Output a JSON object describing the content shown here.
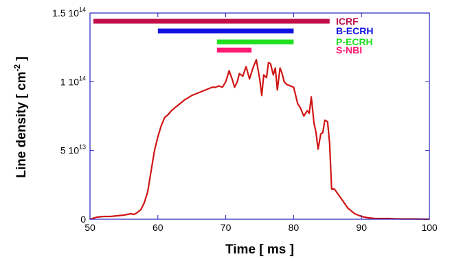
{
  "chart_data": {
    "type": "line",
    "title": "",
    "xlabel": "Time [ ms ]",
    "ylabel_main": "Line density [ cm",
    "ylabel_exp": "-2",
    "ylabel_end": " ]",
    "xlim": [
      50,
      100
    ],
    "ylim": [
      0,
      150000000000000.0
    ],
    "grid": false,
    "x_ticks": [
      {
        "value": 50,
        "label": "50"
      },
      {
        "value": 60,
        "label": "60"
      },
      {
        "value": 70,
        "label": "70"
      },
      {
        "value": 80,
        "label": "80"
      },
      {
        "value": 90,
        "label": "90"
      },
      {
        "value": 100,
        "label": "100"
      }
    ],
    "y_ticks": [
      {
        "value": 0,
        "mant": "0",
        "exp": ""
      },
      {
        "value": 50000000000000.0,
        "mant": "5 10",
        "exp": "13"
      },
      {
        "value": 100000000000000.0,
        "mant": "1 10",
        "exp": "14"
      },
      {
        "value": 150000000000000.0,
        "mant": "1.5 10",
        "exp": "14"
      }
    ],
    "heating_periods": [
      {
        "name": "ICRF",
        "start": 50.5,
        "end": 85.3,
        "level": 144000000000000.0,
        "color": "#c0104a"
      },
      {
        "name": "B-ECRH",
        "start": 60,
        "end": 80,
        "level": 137000000000000.0,
        "color": "#1010e0"
      },
      {
        "name": "P-ECRH",
        "start": 68.7,
        "end": 80,
        "level": 129000000000000.0,
        "color": "#20e020"
      },
      {
        "name": "S-NBI",
        "start": 68.7,
        "end": 73.8,
        "level": 123000000000000.0,
        "color": "#ff1a75"
      }
    ],
    "series": [
      {
        "color": "#d01515",
        "x": [
          50,
          51,
          52,
          53,
          54,
          55,
          56,
          56.5,
          57,
          57.5,
          58,
          58.5,
          59,
          59.5,
          60,
          60.5,
          61,
          61.5,
          62,
          63,
          64,
          65,
          66,
          67,
          67.5,
          68,
          68.5,
          69,
          69.5,
          70,
          70.5,
          71,
          71.3,
          71.7,
          72,
          72.5,
          73,
          73.5,
          74,
          74.5,
          75,
          75.3,
          75.6,
          76,
          76.3,
          76.6,
          77,
          77.3,
          77.6,
          78,
          78.3,
          78.6,
          79,
          80,
          80.3,
          80.6,
          81,
          81.5,
          82,
          82.3,
          82.6,
          83,
          83.3,
          83.6,
          84,
          84.3,
          84.6,
          85,
          85.3,
          85.6,
          86,
          87,
          88,
          89,
          90,
          91,
          92,
          93,
          94,
          95,
          96,
          97,
          98,
          99,
          100
        ],
        "y": [
          0,
          1500000000000.0,
          2000000000000.0,
          2000000000000.0,
          2500000000000.0,
          3000000000000.0,
          4000000000000.0,
          3500000000000.0,
          5000000000000.0,
          7000000000000.0,
          12000000000000.0,
          20000000000000.0,
          35000000000000.0,
          50000000000000.0,
          60000000000000.0,
          68000000000000.0,
          74000000000000.0,
          76000000000000.0,
          79000000000000.0,
          83000000000000.0,
          87000000000000.0,
          90000000000000.0,
          92000000000000.0,
          94000000000000.0,
          95000000000000.0,
          96000000000000.0,
          96000000000000.0,
          97000000000000.0,
          96000000000000.0,
          100000000000000.0,
          108000000000000.0,
          101000000000000.0,
          96000000000000.0,
          100000000000000.0,
          106000000000000.0,
          104000000000000.0,
          111000000000000.0,
          102000000000000.0,
          110000000000000.0,
          116000000000000.0,
          102000000000000.0,
          90000000000000.0,
          105000000000000.0,
          103000000000000.0,
          114000000000000.0,
          113000000000000.0,
          105000000000000.0,
          110000000000000.0,
          94000000000000.0,
          110000000000000.0,
          106000000000000.0,
          100000000000000.0,
          98000000000000.0,
          96000000000000.0,
          90000000000000.0,
          84000000000000.0,
          81000000000000.0,
          75000000000000.0,
          79000000000000.0,
          77000000000000.0,
          89000000000000.0,
          70000000000000.0,
          63000000000000.0,
          51000000000000.0,
          62000000000000.0,
          63000000000000.0,
          72000000000000.0,
          71000000000000.0,
          55000000000000.0,
          22000000000000.0,
          22000000000000.0,
          15000000000000.0,
          8000000000000.0,
          4000000000000.0,
          2000000000000.0,
          1000000000000.0,
          500000000000.0,
          500000000000.0,
          500000000000.0,
          300000000000.0,
          200000000000.0,
          200000000000.0,
          200000000000.0,
          100000000000.0,
          0
        ]
      }
    ]
  }
}
